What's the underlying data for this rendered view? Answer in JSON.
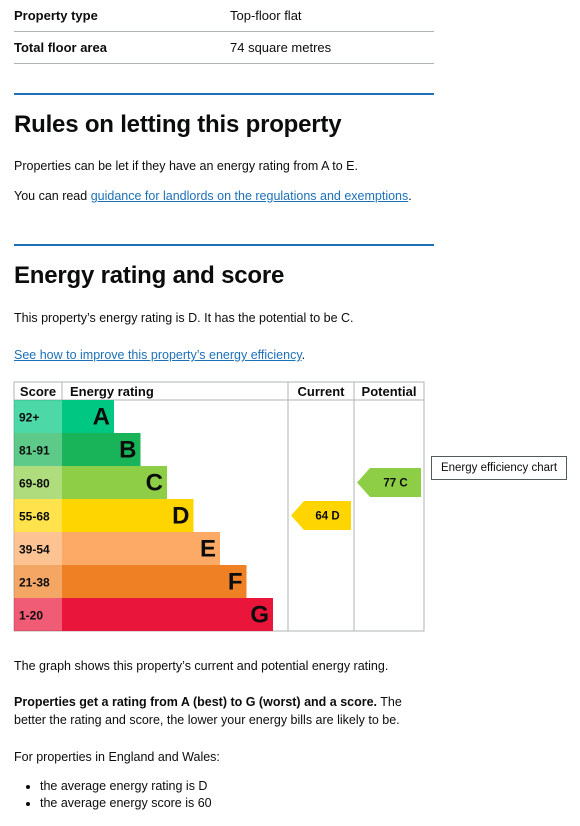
{
  "summary": {
    "rows": [
      {
        "key": "Property type",
        "value": "Top-floor flat"
      },
      {
        "key": "Total floor area",
        "value": "74 square metres"
      }
    ]
  },
  "letting": {
    "heading": "Rules on letting this property",
    "para1": "Properties can be let if they have an energy rating from A to E.",
    "para2_prefix": "You can read ",
    "para2_link": "guidance for landlords on the regulations and exemptions",
    "para2_suffix": "."
  },
  "energy": {
    "heading": "Energy rating and score",
    "para": "This property’s energy rating is D. It has the potential to be C.",
    "link": "See how to improve this property’s energy efficiency",
    "link_suffix": "."
  },
  "chart_data": {
    "type": "table",
    "headers": {
      "score": "Score",
      "rating": "Energy rating",
      "current": "Current",
      "potential": "Potential"
    },
    "bands": [
      {
        "range": "92+",
        "letter": "A",
        "color": "#00c781"
      },
      {
        "range": "81-91",
        "letter": "B",
        "color": "#19b459"
      },
      {
        "range": "69-80",
        "letter": "C",
        "color": "#8dce46"
      },
      {
        "range": "55-68",
        "letter": "D",
        "color": "#ffd500"
      },
      {
        "range": "39-54",
        "letter": "E",
        "color": "#fcaa65"
      },
      {
        "range": "21-38",
        "letter": "F",
        "color": "#ef8023"
      },
      {
        "range": "1-20",
        "letter": "G",
        "color": "#e9153b"
      }
    ],
    "current": {
      "score": 64,
      "letter": "D",
      "label": "64 D"
    },
    "potential": {
      "score": 77,
      "letter": "C",
      "label": "77 C"
    }
  },
  "tooltip": "Energy efficiency chart",
  "explain": {
    "graph_text": "The graph shows this property’s current and potential energy rating.",
    "bold": "Properties get a rating from A (best) to G (worst) and a score.",
    "rest": " The better the rating and score, the lower your energy bills are likely to be.",
    "england": "For properties in England and Wales:",
    "bullets": [
      "the average energy rating is D",
      "the average energy score is 60"
    ]
  }
}
